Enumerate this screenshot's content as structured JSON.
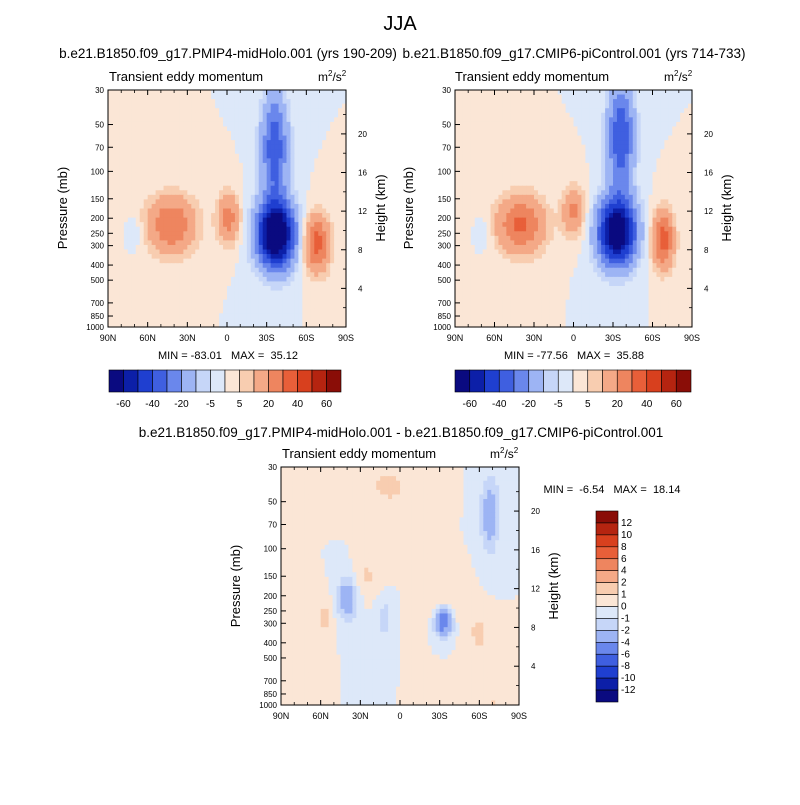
{
  "figure": {
    "title": "JJA"
  },
  "colors": {
    "neg": [
      "#0a0a80",
      "#0c1fa8",
      "#1f3fd0",
      "#3f5fe0",
      "#6a87ec",
      "#9db4f4",
      "#c6d6f8",
      "#dde8f9"
    ],
    "pos": [
      "#fbe6d6",
      "#f8cdb0",
      "#f4a987",
      "#ee855f",
      "#e85f39",
      "#d8401e",
      "#b52410",
      "#8a0d07"
    ]
  },
  "chart_data": [
    {
      "id": "top-left",
      "type": "heatmap",
      "title": "b.e21.B1850.f09_g17.PMIP4-midHolo.001 (yrs 190-209)",
      "subtitle_left": "Transient eddy momentum",
      "units_base": "m",
      "units_sup1": "2",
      "units_mid": "/s",
      "units_sup2": "2",
      "xlabel": "",
      "ylabel": "Pressure (mb)",
      "y2label": "Height (km)",
      "x_ticks": [
        "90N",
        "60N",
        "30N",
        "0",
        "30S",
        "60S",
        "90S"
      ],
      "y_ticks": [
        "30",
        "50",
        "70",
        "100",
        "150",
        "200",
        "250",
        "300",
        "400",
        "500",
        "700",
        "850",
        "1000"
      ],
      "y_tick_values": [
        30,
        50,
        70,
        100,
        150,
        200,
        250,
        300,
        400,
        500,
        700,
        850,
        1000
      ],
      "y2_ticks": [
        "20",
        "16",
        "12",
        "8",
        "4"
      ],
      "y2_tick_values": [
        20,
        16,
        12,
        8,
        4
      ],
      "xlim": [
        90,
        -90
      ],
      "ylim": [
        1000,
        30
      ],
      "stats_text": "MIN = -83.01   MAX =  35.12",
      "levels": [
        -60,
        -50,
        -40,
        -30,
        -20,
        -10,
        -5,
        0,
        5,
        10,
        20,
        30,
        40,
        50,
        60
      ],
      "colorbar_labels": [
        "-60",
        "-40",
        "-20",
        "-5",
        "5",
        "20",
        "40",
        "60"
      ],
      "features": [
        {
          "lat": 42,
          "p": 220,
          "amp": 30,
          "slat": 13,
          "slogp": 0.3
        },
        {
          "lat": -1,
          "p": 200,
          "amp": 25,
          "slat": 6,
          "slogp": 0.26
        },
        {
          "lat": -37,
          "p": 255,
          "amp": -83,
          "slat": 10,
          "slogp": 0.34
        },
        {
          "lat": -36,
          "p": 70,
          "amp": -38,
          "slat": 7,
          "slogp": 0.55
        },
        {
          "lat": -68,
          "p": 290,
          "amp": 35,
          "slat": 7,
          "slogp": 0.3
        },
        {
          "lat": 70,
          "p": 250,
          "amp": -7,
          "slat": 4,
          "slogp": 0.15
        }
      ]
    },
    {
      "id": "top-right",
      "type": "heatmap",
      "title": "b.e21.B1850.f09_g17.CMIP6-piControl.001 (yrs 714-733)",
      "subtitle_left": "Transient eddy momentum",
      "units_base": "m",
      "units_sup1": "2",
      "units_mid": "/s",
      "units_sup2": "2",
      "xlabel": "",
      "ylabel": "Pressure (mb)",
      "y2label": "Height (km)",
      "x_ticks": [
        "90N",
        "60N",
        "30N",
        "0",
        "30S",
        "60S",
        "90S"
      ],
      "y_ticks": [
        "30",
        "50",
        "70",
        "100",
        "150",
        "200",
        "250",
        "300",
        "400",
        "500",
        "700",
        "850",
        "1000"
      ],
      "y_tick_values": [
        30,
        50,
        70,
        100,
        150,
        200,
        250,
        300,
        400,
        500,
        700,
        850,
        1000
      ],
      "y2_ticks": [
        "20",
        "16",
        "12",
        "8",
        "4"
      ],
      "y2_tick_values": [
        20,
        16,
        12,
        8,
        4
      ],
      "xlim": [
        90,
        -90
      ],
      "ylim": [
        1000,
        30
      ],
      "stats_text": "MIN = -77.56   MAX =  35.88",
      "levels": [
        -60,
        -50,
        -40,
        -30,
        -20,
        -10,
        -5,
        0,
        5,
        10,
        20,
        30,
        40,
        50,
        60
      ],
      "colorbar_labels": [
        "-60",
        "-40",
        "-20",
        "-5",
        "5",
        "20",
        "40",
        "60"
      ],
      "features": [
        {
          "lat": 40,
          "p": 220,
          "amp": 32,
          "slat": 13,
          "slogp": 0.3
        },
        {
          "lat": 0,
          "p": 180,
          "amp": 22,
          "slat": 6,
          "slogp": 0.26
        },
        {
          "lat": -33,
          "p": 245,
          "amp": -78,
          "slat": 10,
          "slogp": 0.34
        },
        {
          "lat": -36,
          "p": 60,
          "amp": -40,
          "slat": 7,
          "slogp": 0.55
        },
        {
          "lat": -68,
          "p": 275,
          "amp": 36,
          "slat": 6,
          "slogp": 0.3
        },
        {
          "lat": 68,
          "p": 250,
          "amp": -7,
          "slat": 4,
          "slogp": 0.15
        }
      ]
    },
    {
      "id": "bottom",
      "type": "heatmap",
      "title": "b.e21.B1850.f09_g17.PMIP4-midHolo.001 - b.e21.B1850.f09_g17.CMIP6-piControl.001",
      "subtitle_left": "Transient eddy momentum",
      "units_base": "m",
      "units_sup1": "2",
      "units_mid": "/s",
      "units_sup2": "2",
      "xlabel": "",
      "ylabel": "Pressure (mb)",
      "y2label": "Height (km)",
      "x_ticks": [
        "90N",
        "60N",
        "30N",
        "0",
        "30S",
        "60S",
        "90S"
      ],
      "y_ticks": [
        "30",
        "50",
        "70",
        "100",
        "150",
        "200",
        "250",
        "300",
        "400",
        "500",
        "700",
        "850",
        "1000"
      ],
      "y_tick_values": [
        30,
        50,
        70,
        100,
        150,
        200,
        250,
        300,
        400,
        500,
        700,
        850,
        1000
      ],
      "y2_ticks": [
        "20",
        "16",
        "12",
        "8",
        "4"
      ],
      "y2_tick_values": [
        20,
        16,
        12,
        8,
        4
      ],
      "xlim": [
        90,
        -90
      ],
      "ylim": [
        1000,
        30
      ],
      "stats_text": "MIN =  -6.54   MAX =  18.14",
      "levels": [
        -12,
        -10,
        -8,
        -6,
        -4,
        -2,
        -1,
        0,
        1,
        2,
        4,
        6,
        8,
        10,
        12
      ],
      "colorbar_labels": [
        "12",
        "10",
        "8",
        "6",
        "4",
        "2",
        "1",
        "0",
        "-1",
        "-2",
        "-4",
        "-6",
        "-8",
        "-10",
        "-12"
      ],
      "features": [
        {
          "lat": -33,
          "p": 290,
          "amp": -6.5,
          "slat": 5,
          "slogp": 0.16
        },
        {
          "lat": -34,
          "p": 230,
          "amp": 1.5,
          "slat": 11,
          "slogp": 0.26
        },
        {
          "lat": 40,
          "p": 210,
          "amp": -3.5,
          "slat": 5,
          "slogp": 0.22
        },
        {
          "lat": 57,
          "p": 280,
          "amp": 1.4,
          "slat": 4,
          "slogp": 0.2
        },
        {
          "lat": 25,
          "p": 150,
          "amp": 1.2,
          "slat": 7,
          "slogp": 0.18
        },
        {
          "lat": 12,
          "p": 280,
          "amp": -1.6,
          "slat": 4,
          "slogp": 0.2
        },
        {
          "lat": -60,
          "p": 350,
          "amp": 1.3,
          "slat": 6,
          "slogp": 0.24
        },
        {
          "lat": -68,
          "p": 60,
          "amp": -3,
          "slat": 5,
          "slogp": 0.4
        },
        {
          "lat": 8,
          "p": 40,
          "amp": 1.2,
          "slat": 15,
          "slogp": 0.25
        },
        {
          "lat": -70,
          "p": 1000,
          "amp": 18,
          "slat": 1.2,
          "slogp": 0.015
        }
      ]
    }
  ]
}
